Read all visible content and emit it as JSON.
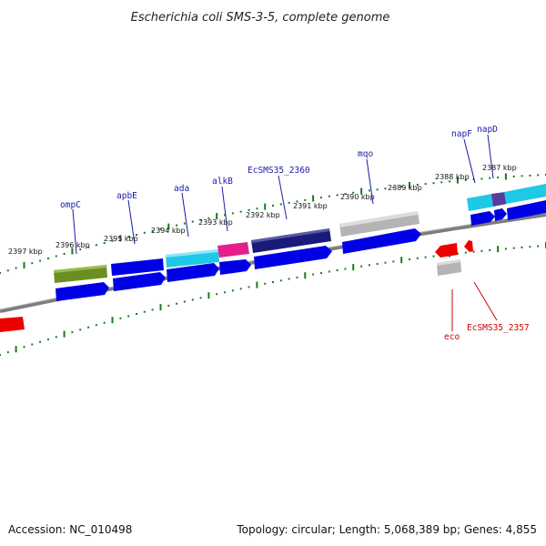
{
  "title": "Escherichia coli SMS-3-5, complete genome",
  "footer": {
    "accession": "Accession: NC_010498",
    "summary": "Topology: circular; Length: 5,068,389 bp; Genes: 4,855"
  },
  "colors": {
    "forward_gene": "#0000e6",
    "reverse_gene": "#ee0000",
    "gene_label_forward": "#1a1aa8",
    "gene_label_reverse": "#d40000",
    "tick": "#1a7a1a",
    "backbone": "#7d7d7d",
    "green_feature": "#6b8e23",
    "cyan_feature": "#1ec8e6",
    "magenta_feature": "#e61e8c",
    "navy_feature": "#1a1a7a",
    "gray_feature": "#b4b4b4",
    "purple_feature": "#5a3c9c"
  },
  "tick_labels": [
    {
      "text": "2397 kbp",
      "kbp": 2397
    },
    {
      "text": "2396 kbp",
      "kbp": 2396
    },
    {
      "text": "2395 kbp",
      "kbp": 2395
    },
    {
      "text": "2394 kbp",
      "kbp": 2394
    },
    {
      "text": "2393 kbp",
      "kbp": 2393
    },
    {
      "text": "2392 kbp",
      "kbp": 2392
    },
    {
      "text": "2391 kbp",
      "kbp": 2391
    },
    {
      "text": "2390 kbp",
      "kbp": 2390
    },
    {
      "text": "2389 kbp",
      "kbp": 2389
    },
    {
      "text": "2388 kbp",
      "kbp": 2388
    },
    {
      "text": "2387 kbp",
      "kbp": 2387
    }
  ],
  "gene_labels": [
    {
      "name": "ompC",
      "strand": "forward"
    },
    {
      "name": "apbE",
      "strand": "forward"
    },
    {
      "name": "ada",
      "strand": "forward"
    },
    {
      "name": "alkB",
      "strand": "forward"
    },
    {
      "name": "EcSMS35_2360",
      "strand": "forward"
    },
    {
      "name": "mqo",
      "strand": "forward"
    },
    {
      "name": "napF",
      "strand": "forward"
    },
    {
      "name": "napD",
      "strand": "forward"
    },
    {
      "name": "eco",
      "strand": "reverse"
    },
    {
      "name": "EcSMS35_2357",
      "strand": "reverse"
    }
  ]
}
